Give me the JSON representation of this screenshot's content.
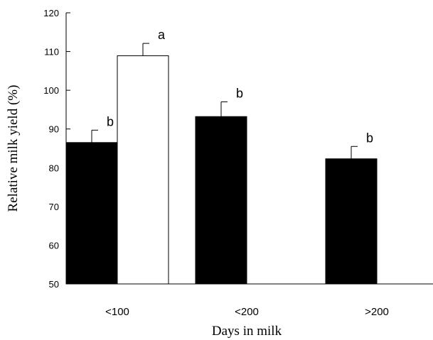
{
  "chart_data": {
    "type": "bar",
    "title": "",
    "xlabel": "Days in milk",
    "ylabel": "Relative milk yield (%)",
    "ylim": [
      50,
      120
    ],
    "yticks": [
      50,
      60,
      70,
      80,
      90,
      100,
      110,
      120
    ],
    "categories": [
      "<100",
      "<200",
      ">200"
    ],
    "series": [
      {
        "values": [
          86.5,
          93.2,
          82.3
        ],
        "errors": [
          3.2,
          3.8,
          3.2
        ],
        "letters": [
          "b",
          "b",
          "b"
        ],
        "color": "#000000"
      },
      {
        "values": [
          108.9,
          null,
          null
        ],
        "errors": [
          3.2,
          null,
          null
        ],
        "letters": [
          "a",
          null,
          null
        ],
        "color": "#ffffff"
      }
    ],
    "grid": false,
    "legend": "none"
  }
}
